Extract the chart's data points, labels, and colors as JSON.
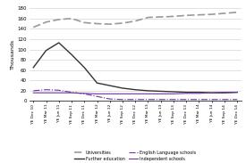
{
  "x_labels": [
    "YE Dec 10",
    "YE Mar 11",
    "YE Jun 11",
    "YE Sep 11",
    "YE Dec 11",
    "YE Mar 12",
    "YE Jun 12",
    "YE Sep 12",
    "YE Dec 12",
    "YE Mar 13",
    "YE Jun 13",
    "YE Sep 13",
    "YE Dec 13",
    "YE Mar 14",
    "YE Jun 14",
    "YE Sep 14",
    "YE Dec 14"
  ],
  "universities": [
    143,
    153,
    158,
    160,
    152,
    150,
    149,
    151,
    155,
    162,
    163,
    164,
    166,
    167,
    168,
    170,
    172
  ],
  "further_education": [
    65,
    98,
    113,
    90,
    65,
    35,
    30,
    25,
    22,
    20,
    19,
    18,
    17,
    17,
    16,
    16,
    17
  ],
  "english_language_schools": [
    20,
    22,
    21,
    17,
    14,
    9,
    4,
    3,
    3,
    3,
    3,
    3,
    3,
    3,
    3,
    3,
    3
  ],
  "independent_schools": [
    16,
    16,
    16,
    16,
    15,
    14,
    14,
    14,
    14,
    14,
    14,
    14,
    15,
    15,
    16,
    17,
    17
  ],
  "universities_color": "#999999",
  "further_education_color": "#333333",
  "english_language_color": "#7030a0",
  "independent_schools_color": "#7030a0",
  "ylabel": "Thousands",
  "ylim_min": 0,
  "ylim_max": 180,
  "yticks": [
    0,
    20,
    40,
    60,
    80,
    100,
    120,
    140,
    160,
    180
  ],
  "legend_labels": [
    "Universities",
    "Further education",
    "English Language schools",
    "Independent schools"
  ]
}
